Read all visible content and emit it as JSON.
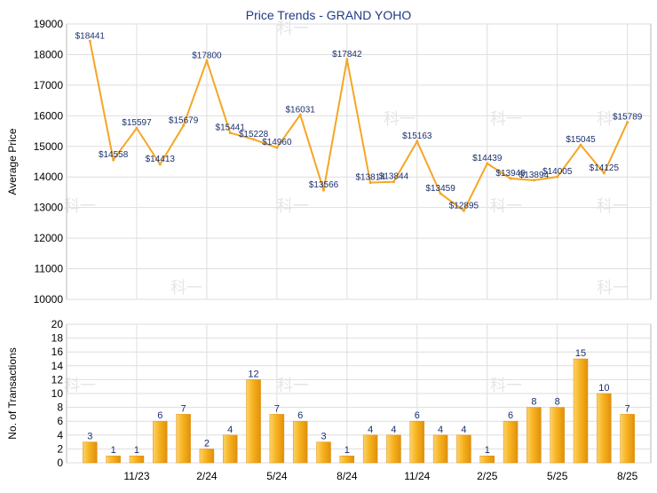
{
  "title": "Price Trends - GRAND YOHO",
  "colors": {
    "line": "#f5a623",
    "bar_light": "#fbd36a",
    "bar_mid": "#f7b21f",
    "bar_dark": "#e0900c",
    "grid": "#dedede",
    "frame": "#b8b8b8",
    "title": "#1f3a86",
    "label": "#000000",
    "data_label": "#1a2f6e",
    "watermark": "#e6e6e6"
  },
  "watermark_text": "科一",
  "chart_data": [
    {
      "type": "line",
      "title": "Price Trends - GRAND YOHO",
      "ylabel": "Average Price",
      "ylim": [
        10000,
        19000
      ],
      "yticks": [
        10000,
        11000,
        12000,
        13000,
        14000,
        15000,
        16000,
        17000,
        18000,
        19000
      ],
      "grid": true,
      "x": [
        "9/23",
        "10/23",
        "11/23",
        "12/23",
        "1/24",
        "2/24",
        "3/24",
        "4/24",
        "5/24",
        "6/24",
        "7/24",
        "8/24",
        "9/24",
        "10/24",
        "11/24",
        "12/24",
        "1/25",
        "2/25",
        "3/25",
        "4/25",
        "5/25",
        "6/25",
        "7/25",
        "8/25"
      ],
      "xtick_labels": [
        "11/23",
        "2/24",
        "5/24",
        "8/24",
        "11/24",
        "2/25",
        "5/25",
        "8/25"
      ],
      "values": [
        18441,
        14558,
        15597,
        14413,
        15679,
        17800,
        15441,
        15228,
        14960,
        16031,
        13566,
        17842,
        13814,
        13844,
        15163,
        13459,
        12895,
        14439,
        13949,
        13894,
        14005,
        15045,
        14125,
        15789
      ],
      "labels": [
        "$18441",
        "$14558",
        "$15597",
        "$14413",
        "$15679",
        "$17800",
        "$15441",
        "$15228",
        "$14960",
        "$16031",
        "$13566",
        "$17842",
        "$13814",
        "$13844",
        "$15163",
        "$13459",
        "$12895",
        "$14439",
        "$13949",
        "$13894",
        "$14005",
        "$15045",
        "$14125",
        "$15789"
      ]
    },
    {
      "type": "bar",
      "ylabel": "No. of Transactions",
      "ylim": [
        0,
        20
      ],
      "yticks": [
        0,
        2,
        4,
        6,
        8,
        10,
        12,
        14,
        16,
        18,
        20
      ],
      "grid": true,
      "x": [
        "9/23",
        "10/23",
        "11/23",
        "12/23",
        "1/24",
        "2/24",
        "3/24",
        "4/24",
        "5/24",
        "6/24",
        "7/24",
        "8/24",
        "9/24",
        "10/24",
        "11/24",
        "12/24",
        "1/25",
        "2/25",
        "3/25",
        "4/25",
        "5/25",
        "6/25",
        "7/25",
        "8/25"
      ],
      "xtick_labels": [
        "11/23",
        "2/24",
        "5/24",
        "8/24",
        "11/24",
        "2/25",
        "5/25",
        "8/25"
      ],
      "values": [
        3,
        1,
        1,
        6,
        7,
        2,
        4,
        12,
        7,
        6,
        3,
        1,
        4,
        4,
        6,
        4,
        4,
        1,
        6,
        8,
        8,
        15,
        10,
        7
      ]
    }
  ]
}
